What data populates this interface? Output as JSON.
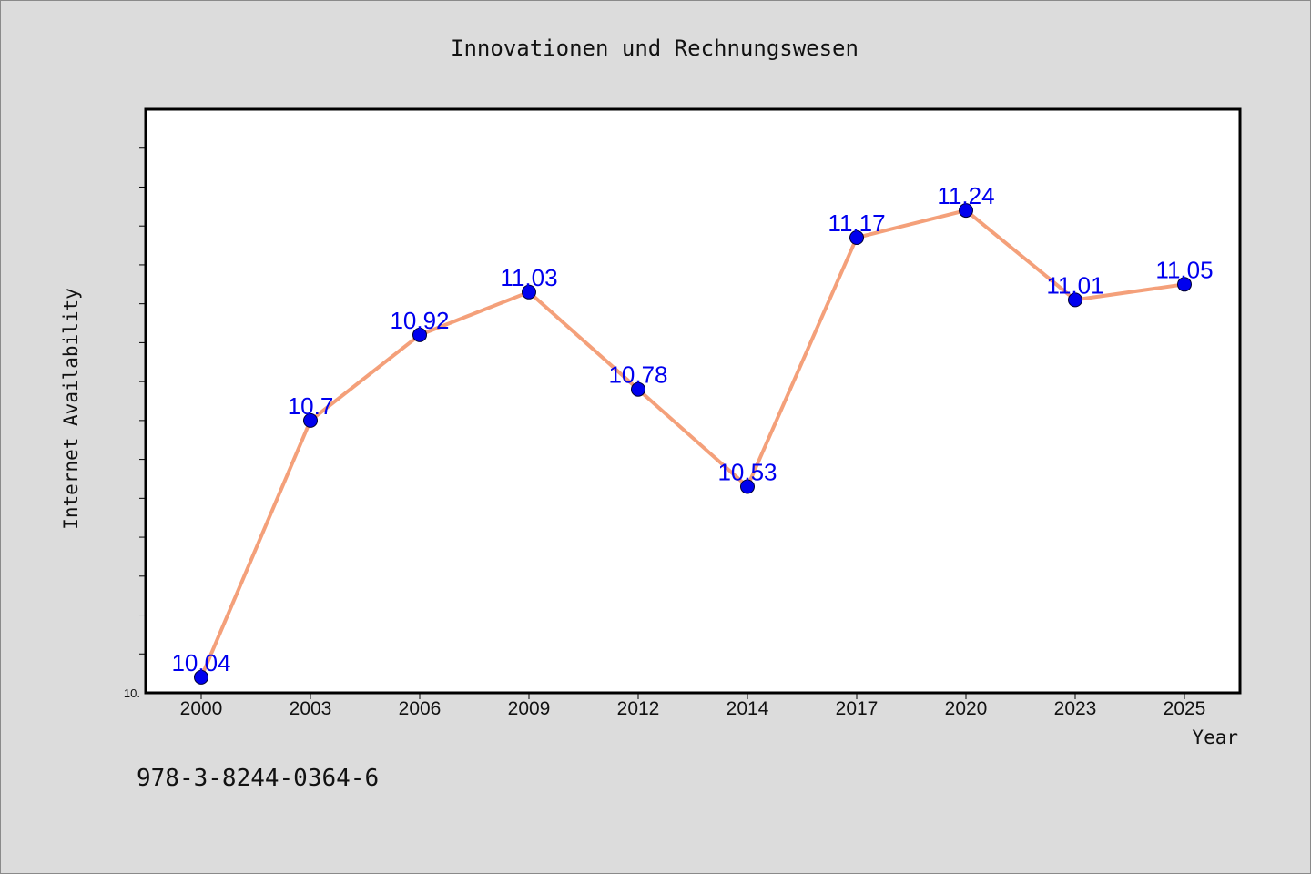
{
  "chart_data": {
    "type": "line",
    "title": "Innovationen und Rechnungswesen",
    "xlabel": "Year",
    "ylabel": "Internet Availability",
    "categories": [
      "2000",
      "2003",
      "2006",
      "2009",
      "2012",
      "2014",
      "2017",
      "2020",
      "2023",
      "2025"
    ],
    "series": [
      {
        "values": [
          10.04,
          10.7,
          10.92,
          11.03,
          10.78,
          10.53,
          11.17,
          11.24,
          11.01,
          11.05
        ],
        "labels": [
          "10.04",
          "10.7",
          "10.92",
          "11.03",
          "10.78",
          "10.53",
          "11.17",
          "11.24",
          "11.01",
          "11.05"
        ],
        "line_color": "#f4a07a",
        "marker_color": "#0000ee",
        "label_color": "#0000ee"
      }
    ],
    "ylim": [
      10.0,
      11.5
    ],
    "y_min_label": "10.",
    "y_minor_step": 0.1,
    "grid": false,
    "legend": "none"
  },
  "footnote": "978-3-8244-0364-6",
  "colors": {
    "page_background": "#dcdcdc",
    "plot_background": "#ffffff",
    "axis": "#000000"
  }
}
